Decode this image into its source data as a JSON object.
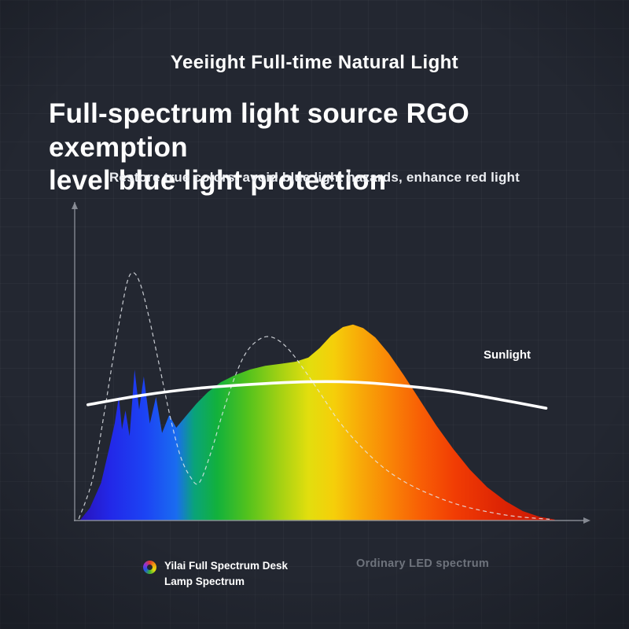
{
  "page": {
    "brand_title": "Yeeiight Full-time Natural Light",
    "heading_line1": "Full-spectrum light source RGO exemption",
    "heading_line2": "level blue light protection",
    "subtitle": "Restore true colors, avoid blue light hazards, enhance red light"
  },
  "legend": {
    "lamp_icon": "color-wheel-icon",
    "lamp_line1": "Yilai Full Spectrum Desk",
    "lamp_line2": "Lamp Spectrum",
    "led_label": "Ordinary LED spectrum"
  },
  "chart_data": {
    "type": "area",
    "title": "",
    "xlabel": "",
    "ylabel": "",
    "x_axis": {
      "tick_labels": [],
      "note": "unlabeled wavelength axis with right arrowhead, x normalized 0-1"
    },
    "y_axis": {
      "tick_labels": [],
      "note": "unlabeled intensity axis with top arrowhead, intensity normalized 0-1"
    },
    "grid": false,
    "legend_position": "bottom",
    "axis_color": "#8f949c",
    "series": [
      {
        "name": "Yilai Full Spectrum Desk Lamp Spectrum",
        "style": "filled-rainbow-area",
        "points": [
          [
            0.01,
            0.0
          ],
          [
            0.03,
            0.04
          ],
          [
            0.052,
            0.12
          ],
          [
            0.068,
            0.23
          ],
          [
            0.079,
            0.31
          ],
          [
            0.087,
            0.395
          ],
          [
            0.093,
            0.29
          ],
          [
            0.1,
            0.35
          ],
          [
            0.108,
            0.268
          ],
          [
            0.118,
            0.48
          ],
          [
            0.127,
            0.352
          ],
          [
            0.136,
            0.458
          ],
          [
            0.148,
            0.308
          ],
          [
            0.16,
            0.393
          ],
          [
            0.172,
            0.278
          ],
          [
            0.186,
            0.335
          ],
          [
            0.2,
            0.295
          ],
          [
            0.218,
            0.33
          ],
          [
            0.24,
            0.372
          ],
          [
            0.262,
            0.408
          ],
          [
            0.288,
            0.44
          ],
          [
            0.315,
            0.462
          ],
          [
            0.345,
            0.48
          ],
          [
            0.375,
            0.492
          ],
          [
            0.405,
            0.498
          ],
          [
            0.435,
            0.505
          ],
          [
            0.46,
            0.518
          ],
          [
            0.482,
            0.548
          ],
          [
            0.505,
            0.588
          ],
          [
            0.528,
            0.615
          ],
          [
            0.548,
            0.623
          ],
          [
            0.568,
            0.612
          ],
          [
            0.592,
            0.582
          ],
          [
            0.618,
            0.532
          ],
          [
            0.648,
            0.462
          ],
          [
            0.68,
            0.382
          ],
          [
            0.712,
            0.302
          ],
          [
            0.745,
            0.228
          ],
          [
            0.778,
            0.162
          ],
          [
            0.812,
            0.106
          ],
          [
            0.848,
            0.062
          ],
          [
            0.882,
            0.03
          ],
          [
            0.915,
            0.012
          ],
          [
            0.945,
            0.003
          ]
        ],
        "gradient_stops": [
          [
            0.0,
            "#2a0fb4"
          ],
          [
            0.07,
            "#2228e8"
          ],
          [
            0.14,
            "#1c44f4"
          ],
          [
            0.2,
            "#1a6cf0"
          ],
          [
            0.235,
            "#0aa37a"
          ],
          [
            0.28,
            "#12b13c"
          ],
          [
            0.34,
            "#52c21d"
          ],
          [
            0.4,
            "#9ed014"
          ],
          [
            0.46,
            "#e2de0e"
          ],
          [
            0.51,
            "#f5cf0a"
          ],
          [
            0.56,
            "#f8ab08"
          ],
          [
            0.62,
            "#f98506"
          ],
          [
            0.68,
            "#f85f05"
          ],
          [
            0.75,
            "#f13c04"
          ],
          [
            0.84,
            "#dd2404"
          ],
          [
            1.0,
            "#b81203"
          ]
        ]
      },
      {
        "name": "Ordinary LED spectrum",
        "style": "dashed-line",
        "color": "#e4e7ec",
        "points": [
          [
            0.008,
            0.005
          ],
          [
            0.035,
            0.13
          ],
          [
            0.057,
            0.33
          ],
          [
            0.074,
            0.5
          ],
          [
            0.09,
            0.65
          ],
          [
            0.104,
            0.762
          ],
          [
            0.116,
            0.788
          ],
          [
            0.13,
            0.748
          ],
          [
            0.146,
            0.648
          ],
          [
            0.166,
            0.498
          ],
          [
            0.188,
            0.33
          ],
          [
            0.208,
            0.205
          ],
          [
            0.228,
            0.138
          ],
          [
            0.245,
            0.12
          ],
          [
            0.268,
            0.215
          ],
          [
            0.291,
            0.34
          ],
          [
            0.315,
            0.455
          ],
          [
            0.336,
            0.53
          ],
          [
            0.358,
            0.57
          ],
          [
            0.38,
            0.585
          ],
          [
            0.402,
            0.572
          ],
          [
            0.425,
            0.537
          ],
          [
            0.455,
            0.472
          ],
          [
            0.486,
            0.398
          ],
          [
            0.522,
            0.312
          ],
          [
            0.563,
            0.236
          ],
          [
            0.608,
            0.168
          ],
          [
            0.655,
            0.118
          ],
          [
            0.702,
            0.082
          ],
          [
            0.752,
            0.052
          ],
          [
            0.806,
            0.03
          ],
          [
            0.868,
            0.013
          ],
          [
            0.935,
            0.004
          ]
        ]
      },
      {
        "name": "Sunlight",
        "label": "Sunlight",
        "style": "solid-line",
        "color": "#ffffff",
        "points": [
          [
            0.026,
            0.368
          ],
          [
            0.132,
            0.398
          ],
          [
            0.24,
            0.42
          ],
          [
            0.349,
            0.433
          ],
          [
            0.457,
            0.441
          ],
          [
            0.55,
            0.44
          ],
          [
            0.643,
            0.429
          ],
          [
            0.736,
            0.412
          ],
          [
            0.829,
            0.387
          ],
          [
            0.928,
            0.357
          ]
        ]
      }
    ]
  }
}
